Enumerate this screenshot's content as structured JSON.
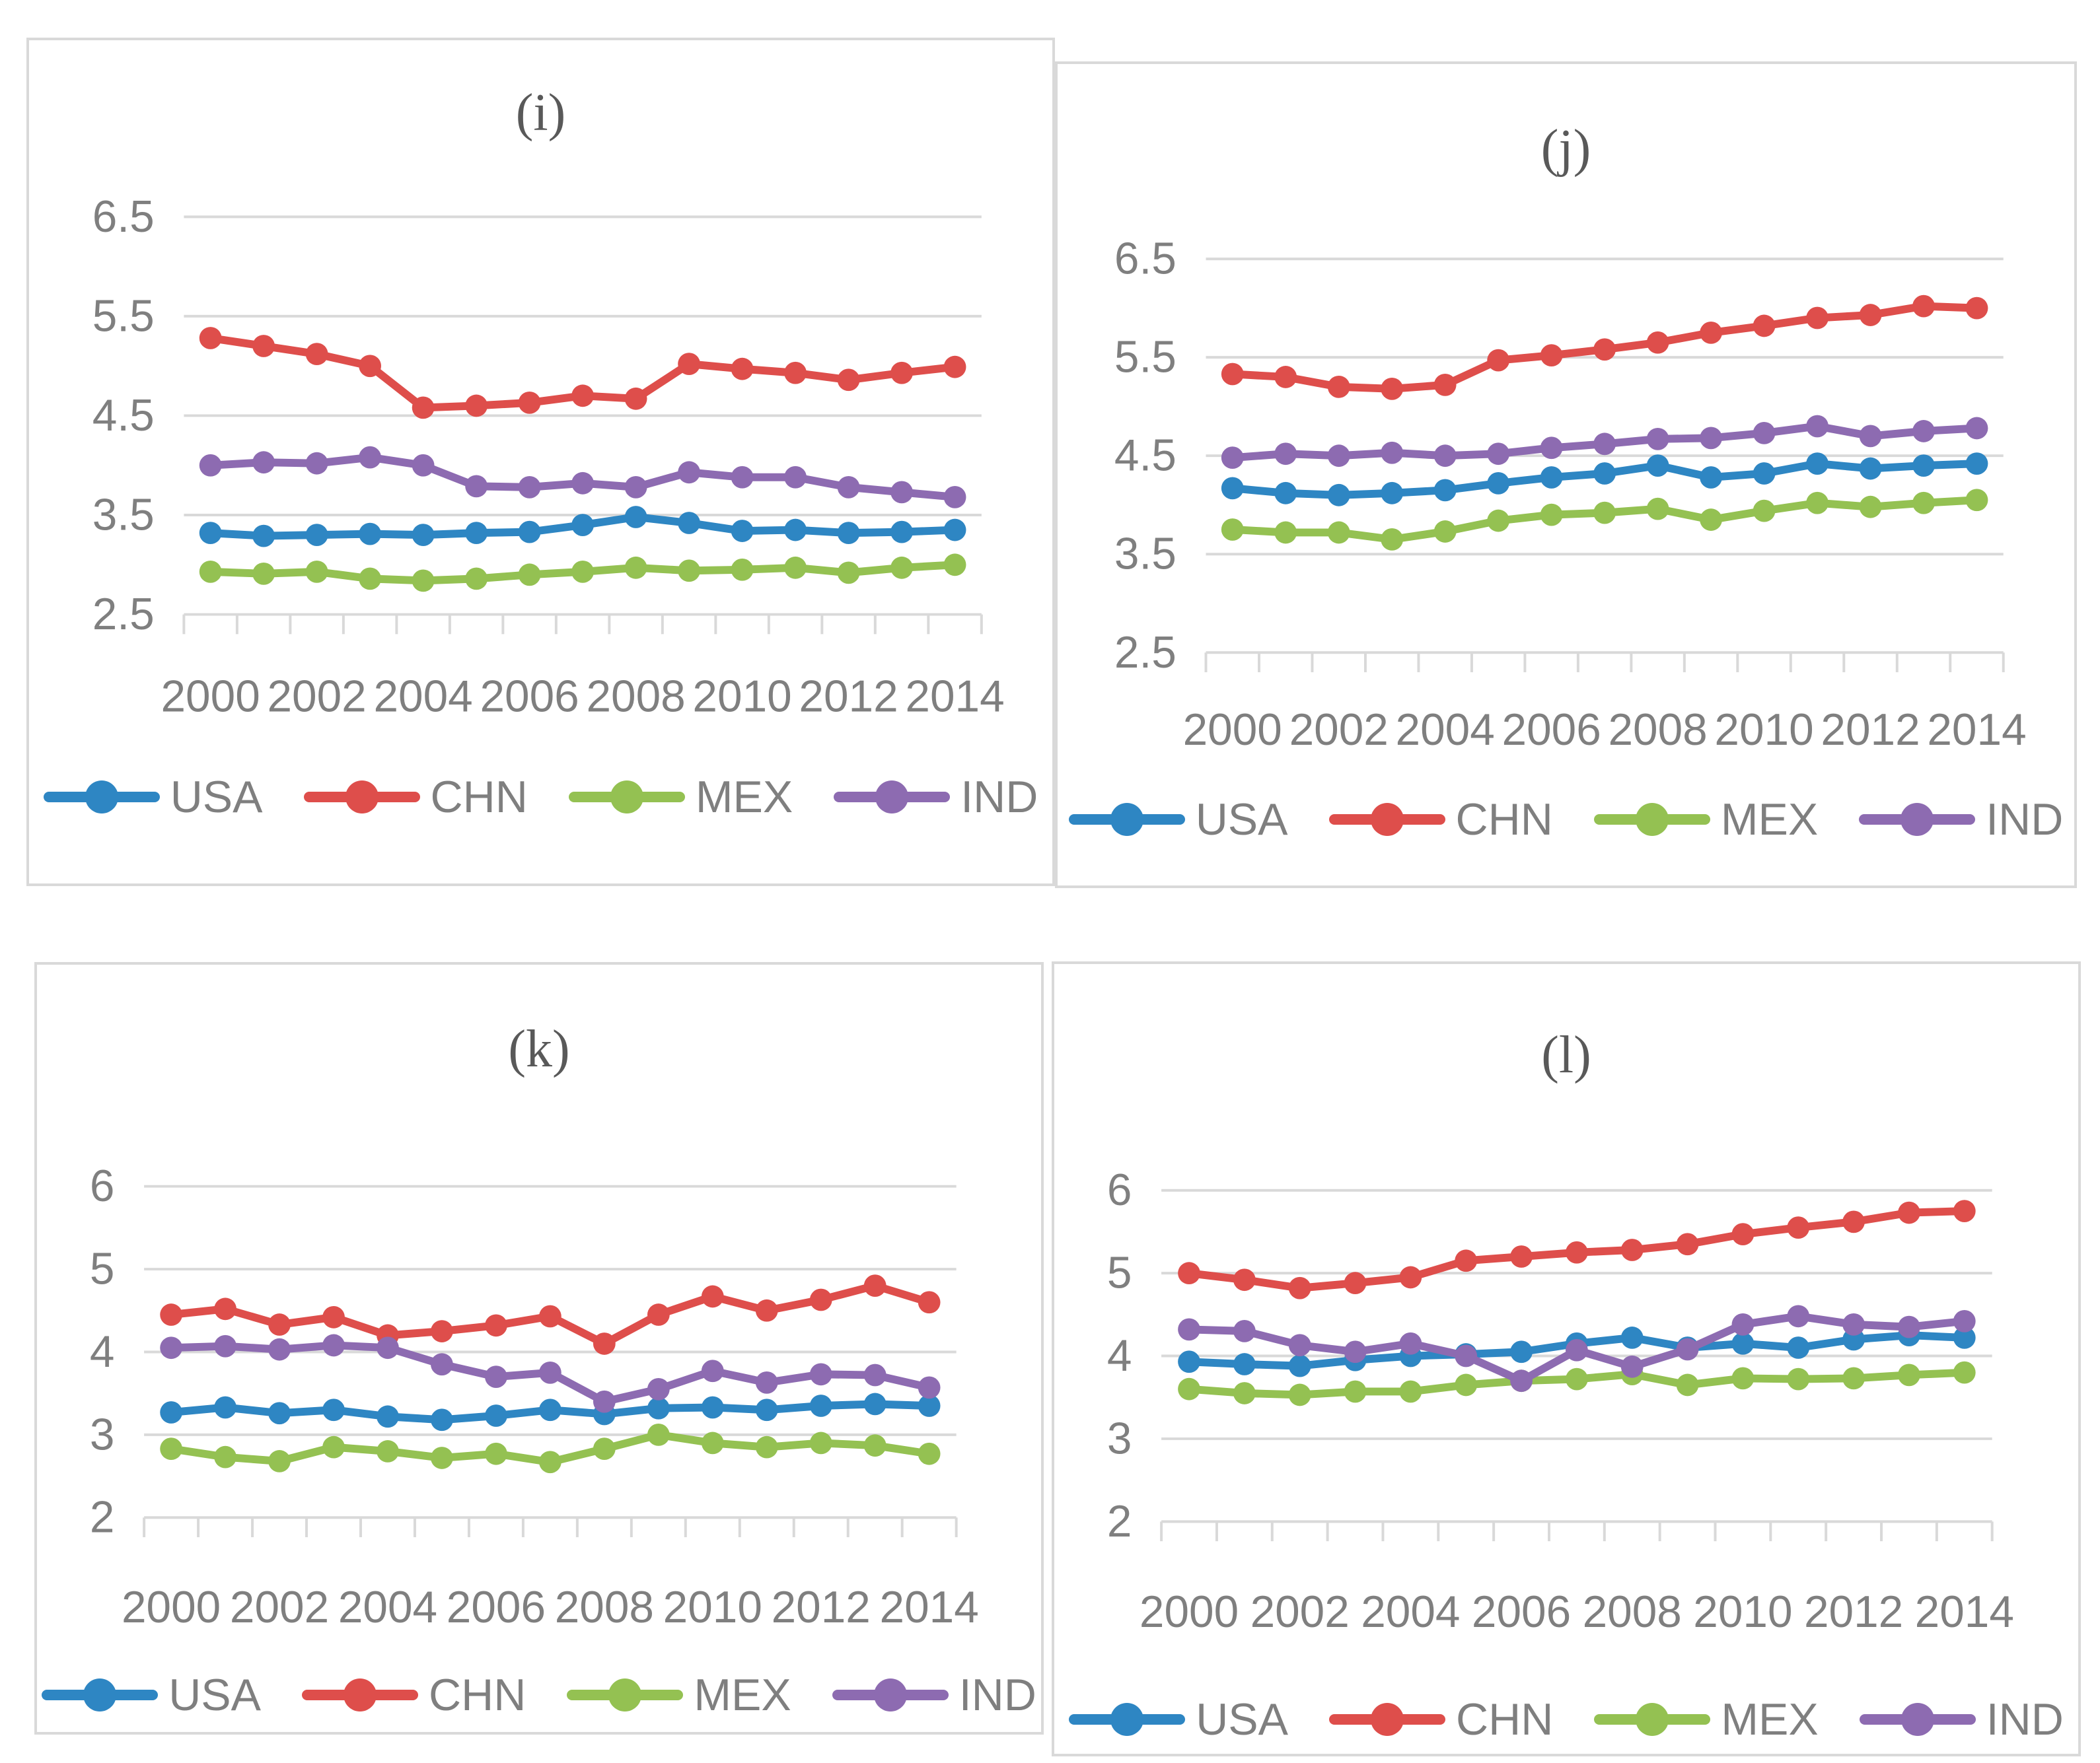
{
  "figure": {
    "description": "Four line-chart panels comparing USA, CHN, MEX and IND over 2000-2014",
    "panel_labels": [
      "(i)",
      "(j)",
      "(k)",
      "(l)"
    ]
  },
  "style": {
    "background": "#ffffff",
    "panel_border_color": "#d9d9d9",
    "grid_color": "#d9d9d9",
    "axis_text_color": "#7f7f7f",
    "title_color": "#595959",
    "series_colors": {
      "USA": "#2e86c3",
      "CHN": "#de4e4b",
      "MEX": "#94c152",
      "IND": "#8d6bb1"
    }
  },
  "legend": {
    "entries": [
      "USA",
      "CHN",
      "MEX",
      "IND"
    ],
    "position": "bottom"
  },
  "chart_data": [
    {
      "id": "i",
      "type": "line",
      "title": "(i)",
      "x": [
        2000,
        2001,
        2002,
        2003,
        2004,
        2005,
        2006,
        2007,
        2008,
        2009,
        2010,
        2011,
        2012,
        2013,
        2014
      ],
      "x_label_step": 2,
      "ylim": [
        2.5,
        6.5
      ],
      "y_ticks": [
        "2.5",
        "3.5",
        "4.5",
        "5.5",
        "6.5"
      ],
      "grid": true,
      "legend_position": "bottom",
      "series": [
        {
          "name": "USA",
          "color": "#2e86c3",
          "values": [
            3.32,
            3.29,
            3.3,
            3.31,
            3.3,
            3.32,
            3.33,
            3.4,
            3.48,
            3.42,
            3.34,
            3.35,
            3.32,
            3.33,
            3.35
          ]
        },
        {
          "name": "CHN",
          "color": "#de4e4b",
          "values": [
            5.28,
            5.2,
            5.12,
            5.0,
            4.58,
            4.6,
            4.63,
            4.7,
            4.67,
            5.02,
            4.97,
            4.93,
            4.86,
            4.93,
            4.99
          ]
        },
        {
          "name": "MEX",
          "color": "#94c152",
          "values": [
            2.93,
            2.91,
            2.93,
            2.86,
            2.84,
            2.86,
            2.9,
            2.93,
            2.97,
            2.94,
            2.95,
            2.97,
            2.92,
            2.97,
            3.0
          ]
        },
        {
          "name": "IND",
          "color": "#8d6bb1",
          "values": [
            4.0,
            4.03,
            4.02,
            4.08,
            4.0,
            3.79,
            3.78,
            3.82,
            3.78,
            3.93,
            3.88,
            3.88,
            3.78,
            3.73,
            3.68
          ]
        }
      ]
    },
    {
      "id": "j",
      "type": "line",
      "title": "(j)",
      "x": [
        2000,
        2001,
        2002,
        2003,
        2004,
        2005,
        2006,
        2007,
        2008,
        2009,
        2010,
        2011,
        2012,
        2013,
        2014
      ],
      "x_label_step": 2,
      "ylim": [
        2.5,
        6.5
      ],
      "y_ticks": [
        "2.5",
        "3.5",
        "4.5",
        "5.5",
        "6.5"
      ],
      "grid": true,
      "legend_position": "bottom",
      "series": [
        {
          "name": "USA",
          "color": "#2e86c3",
          "values": [
            4.17,
            4.12,
            4.1,
            4.12,
            4.15,
            4.22,
            4.28,
            4.32,
            4.4,
            4.28,
            4.32,
            4.42,
            4.37,
            4.4,
            4.42
          ]
        },
        {
          "name": "CHN",
          "color": "#de4e4b",
          "values": [
            5.33,
            5.3,
            5.2,
            5.18,
            5.22,
            5.47,
            5.52,
            5.58,
            5.65,
            5.75,
            5.82,
            5.9,
            5.93,
            6.02,
            6.0
          ]
        },
        {
          "name": "MEX",
          "color": "#94c152",
          "values": [
            3.75,
            3.72,
            3.72,
            3.65,
            3.73,
            3.84,
            3.9,
            3.92,
            3.96,
            3.85,
            3.94,
            4.02,
            3.98,
            4.02,
            4.05
          ]
        },
        {
          "name": "IND",
          "color": "#8d6bb1",
          "values": [
            4.48,
            4.52,
            4.5,
            4.53,
            4.5,
            4.52,
            4.58,
            4.62,
            4.67,
            4.68,
            4.73,
            4.8,
            4.7,
            4.75,
            4.78
          ]
        }
      ]
    },
    {
      "id": "k",
      "type": "line",
      "title": "(k)",
      "x": [
        2000,
        2001,
        2002,
        2003,
        2004,
        2005,
        2006,
        2007,
        2008,
        2009,
        2010,
        2011,
        2012,
        2013,
        2014
      ],
      "x_label_step": 2,
      "ylim": [
        2,
        6
      ],
      "y_ticks": [
        "2",
        "3",
        "4",
        "5",
        "6"
      ],
      "grid": true,
      "legend_position": "bottom",
      "series": [
        {
          "name": "USA",
          "color": "#2e86c3",
          "values": [
            3.27,
            3.33,
            3.26,
            3.3,
            3.22,
            3.18,
            3.23,
            3.3,
            3.25,
            3.32,
            3.33,
            3.3,
            3.35,
            3.37,
            3.35
          ]
        },
        {
          "name": "CHN",
          "color": "#de4e4b",
          "values": [
            4.45,
            4.52,
            4.33,
            4.42,
            4.2,
            4.25,
            4.32,
            4.43,
            4.1,
            4.45,
            4.67,
            4.5,
            4.63,
            4.8,
            4.6
          ]
        },
        {
          "name": "MEX",
          "color": "#94c152",
          "values": [
            2.83,
            2.73,
            2.68,
            2.85,
            2.8,
            2.72,
            2.77,
            2.67,
            2.83,
            3.0,
            2.9,
            2.85,
            2.9,
            2.87,
            2.77
          ]
        },
        {
          "name": "IND",
          "color": "#8d6bb1",
          "values": [
            4.05,
            4.07,
            4.03,
            4.08,
            4.05,
            3.85,
            3.7,
            3.75,
            3.4,
            3.55,
            3.77,
            3.63,
            3.73,
            3.72,
            3.57
          ]
        }
      ]
    },
    {
      "id": "l",
      "type": "line",
      "title": "(l)",
      "x": [
        2000,
        2001,
        2002,
        2003,
        2004,
        2005,
        2006,
        2007,
        2008,
        2009,
        2010,
        2011,
        2012,
        2013,
        2014
      ],
      "x_label_step": 2,
      "ylim": [
        2,
        6
      ],
      "y_ticks": [
        "2",
        "3",
        "4",
        "5",
        "6"
      ],
      "grid": true,
      "legend_position": "bottom",
      "series": [
        {
          "name": "USA",
          "color": "#2e86c3",
          "values": [
            3.93,
            3.9,
            3.88,
            3.95,
            4.0,
            4.02,
            4.05,
            4.15,
            4.22,
            4.1,
            4.15,
            4.1,
            4.2,
            4.25,
            4.22
          ]
        },
        {
          "name": "CHN",
          "color": "#de4e4b",
          "values": [
            5.0,
            4.92,
            4.82,
            4.88,
            4.95,
            5.15,
            5.2,
            5.25,
            5.28,
            5.35,
            5.47,
            5.55,
            5.62,
            5.73,
            5.75
          ]
        },
        {
          "name": "MEX",
          "color": "#94c152",
          "values": [
            3.6,
            3.55,
            3.53,
            3.57,
            3.57,
            3.65,
            3.7,
            3.72,
            3.78,
            3.65,
            3.73,
            3.72,
            3.73,
            3.77,
            3.8
          ]
        },
        {
          "name": "IND",
          "color": "#8d6bb1",
          "values": [
            4.32,
            4.3,
            4.13,
            4.05,
            4.15,
            4.0,
            3.7,
            4.07,
            3.87,
            4.08,
            4.38,
            4.48,
            4.38,
            4.35,
            4.42
          ]
        }
      ]
    }
  ]
}
